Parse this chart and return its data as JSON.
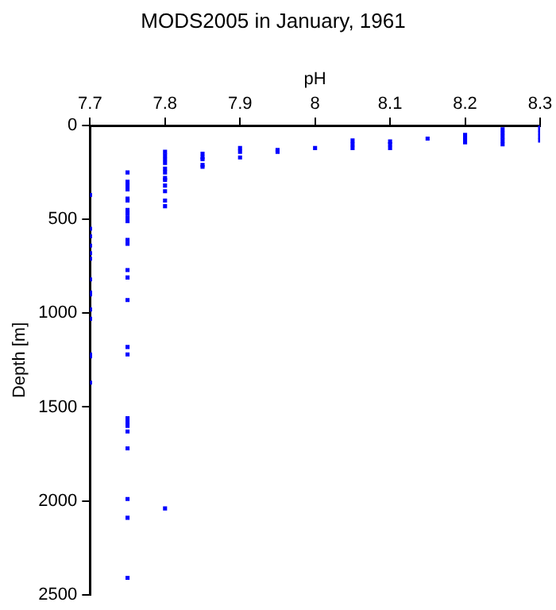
{
  "chart_data": {
    "type": "scatter",
    "title": "MODS2005 in January, 1961",
    "xlabel": "pH",
    "ylabel": "Depth [m]",
    "xlim": [
      7.7,
      8.3
    ],
    "xticks": [
      7.7,
      7.8,
      7.9,
      8,
      8.1,
      8.2,
      8.3
    ],
    "ylim": [
      2500,
      0
    ],
    "yticks": [
      0,
      500,
      1000,
      1500,
      2000,
      2500
    ],
    "grid": false,
    "legend": false,
    "marker": "square",
    "series": [
      {
        "color": "#0000ff",
        "x": [
          7.7,
          7.7,
          7.7,
          7.7,
          7.7,
          7.7,
          7.7,
          7.7,
          7.7,
          7.7,
          7.7,
          7.7,
          7.7,
          7.7,
          7.75,
          7.75,
          7.75,
          7.75,
          7.75,
          7.75,
          7.75,
          7.75,
          7.75,
          7.75,
          7.75,
          7.75,
          7.75,
          7.75,
          7.75,
          7.75,
          7.75,
          7.75,
          7.75,
          7.75,
          7.75,
          7.75,
          7.75,
          7.75,
          7.75,
          7.8,
          7.8,
          7.8,
          7.8,
          7.8,
          7.8,
          7.8,
          7.8,
          7.8,
          7.8,
          7.8,
          7.8,
          7.8,
          7.85,
          7.85,
          7.85,
          7.85,
          7.85,
          7.9,
          7.9,
          7.9,
          7.95,
          7.95,
          8,
          8.05,
          8.05,
          8.05,
          8.1,
          8.1,
          8.1,
          8.15,
          8.2,
          8.2,
          8.2,
          8.25,
          8.25,
          8.25,
          8.25,
          8.25,
          8.3,
          8.3,
          8.3,
          8.3,
          8.3
        ],
        "values": [
          370,
          550,
          590,
          640,
          680,
          710,
          820,
          890,
          900,
          980,
          1030,
          1220,
          1230,
          1370,
          250,
          300,
          320,
          340,
          390,
          400,
          450,
          470,
          490,
          510,
          610,
          630,
          770,
          810,
          930,
          1180,
          1220,
          1560,
          1580,
          1630,
          1720,
          1990,
          2090,
          2410,
          1600,
          140,
          160,
          180,
          200,
          230,
          250,
          280,
          290,
          320,
          350,
          400,
          430,
          2040,
          150,
          170,
          180,
          210,
          220,
          120,
          140,
          170,
          130,
          140,
          120,
          80,
          100,
          120,
          85,
          100,
          120,
          70,
          50,
          70,
          90,
          20,
          40,
          60,
          80,
          100,
          0,
          20,
          40,
          60,
          80
        ]
      }
    ]
  }
}
